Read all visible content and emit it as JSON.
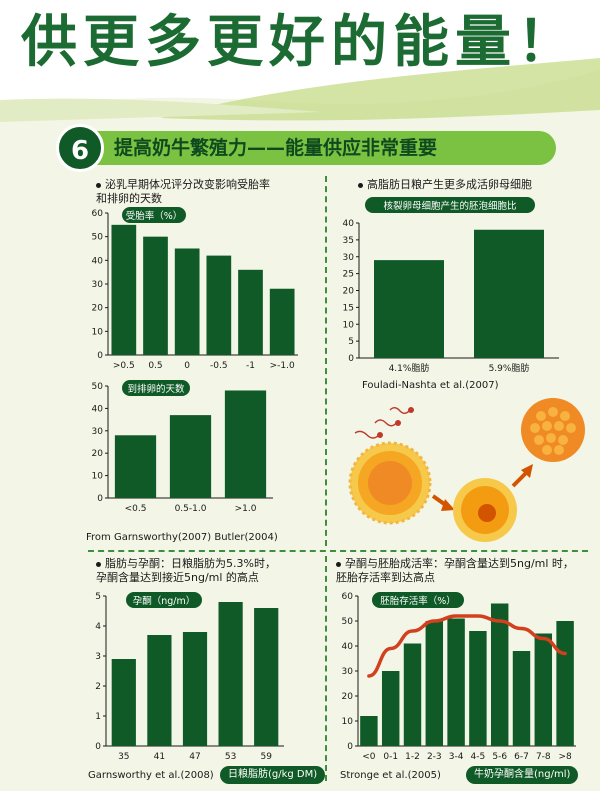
{
  "header": {
    "title": "供更多更好的能量！"
  },
  "section": {
    "number": "6",
    "title": "提高奶牛繁殖力——能量供应非常重要"
  },
  "colors": {
    "bar": "#0f5a26",
    "accent": "#7cc242",
    "curve": "#d2401f",
    "title": "#1b6b33"
  },
  "panels": {
    "top_left": {
      "caption_line1": "泌乳早期体况评分改变影响受胎率",
      "caption_line2": "和排卵的天数",
      "source": "From Garnsworthy(2007) Butler(2004)"
    },
    "top_right": {
      "caption": "高脂肪日粮产生更多成活卵母细胞",
      "source": "Fouladi-Nashta et al.(2007)"
    },
    "bottom_left": {
      "caption_line1": "脂肪与孕酮：日粮脂肪为5.3%时，",
      "caption_line2": "孕酮含量达到接近5ng/ml 的高点",
      "source": "Garnsworthy et al.(2008)"
    },
    "bottom_right": {
      "caption_line1": "孕酮与胚胎成活率：孕酮含量达到5ng/ml 时，",
      "caption_line2": "胚胎存活率到达高点",
      "source": "Stronge et al.(2005)"
    }
  },
  "chart_data": [
    {
      "id": "conception",
      "type": "bar",
      "title": "受胎率（%）",
      "categories": [
        ">0.5",
        "0.5",
        "0",
        "-0.5",
        "-1",
        ">-1.0"
      ],
      "values": [
        55,
        50,
        45,
        42,
        36,
        28
      ],
      "ylim": [
        0,
        60
      ],
      "yticks": [
        0,
        10,
        20,
        30,
        40,
        50,
        60
      ]
    },
    {
      "id": "ovulation",
      "type": "bar",
      "title": "到排卵的天数",
      "categories": [
        "<0.5",
        "0.5-1.0",
        ">1.0"
      ],
      "values": [
        28,
        37,
        48
      ],
      "ylim": [
        0,
        50
      ],
      "yticks": [
        0,
        10,
        20,
        30,
        40,
        50
      ]
    },
    {
      "id": "blastocyst",
      "type": "bar",
      "title": "核裂卵母细胞产生的胚泡细胞比",
      "categories": [
        "4.1%脂肪",
        "5.9%脂肪"
      ],
      "values": [
        29,
        38
      ],
      "ylim": [
        0,
        40
      ],
      "yticks": [
        0,
        5,
        10,
        15,
        20,
        25,
        30,
        35,
        40
      ]
    },
    {
      "id": "progesterone",
      "type": "bar",
      "title": "孕酮（ng/m）",
      "xlabel": "日粮脂肪(g/kg DM)",
      "categories": [
        "35",
        "41",
        "47",
        "53",
        "59"
      ],
      "values": [
        2.9,
        3.7,
        3.8,
        4.8,
        4.6
      ],
      "ylim": [
        0,
        5
      ],
      "yticks": [
        0,
        1,
        2,
        3,
        4,
        5
      ]
    },
    {
      "id": "embryo",
      "type": "bar",
      "title": "胚胎存活率（%）",
      "xlabel": "牛奶孕酮含量(ng/ml)",
      "categories": [
        "<0",
        "0-1",
        "1-2",
        "2-3",
        "3-4",
        "4-5",
        "5-6",
        "6-7",
        "7-8",
        ">8"
      ],
      "values": [
        12,
        30,
        41,
        50,
        51,
        46,
        57,
        38,
        45,
        50
      ],
      "trend": [
        28,
        39,
        46,
        50,
        52,
        52,
        50,
        47,
        43,
        37
      ],
      "ylim": [
        0,
        60
      ],
      "yticks": [
        0,
        10,
        20,
        30,
        40,
        50,
        60
      ]
    }
  ]
}
